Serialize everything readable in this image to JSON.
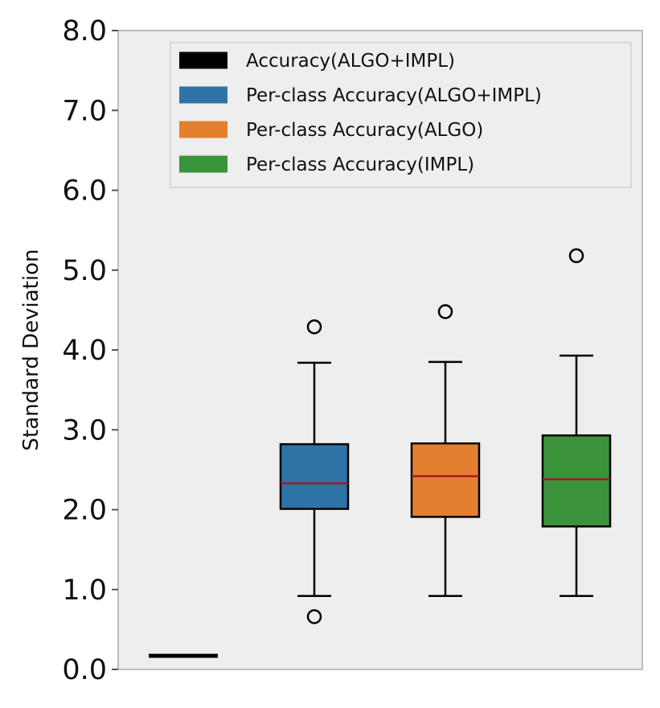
{
  "chart_data": {
    "type": "boxplot",
    "ylabel": "Standard Deviation",
    "ylim": [
      0,
      8
    ],
    "yticks": [
      "0.0",
      "1.0",
      "2.0",
      "3.0",
      "4.0",
      "5.0",
      "6.0",
      "7.0",
      "8.0"
    ],
    "grid": false,
    "legend_position": "top-right",
    "series": [
      {
        "name": "Accuracy(ALGO+IMPL)",
        "color": "#000000",
        "kind": "line",
        "value": 0.17
      },
      {
        "name": "Per-class Accuracy(ALGO+IMPL)",
        "color": "#2e74a6",
        "kind": "box",
        "whisker_low": 0.92,
        "q1": 2.01,
        "median": 2.33,
        "q3": 2.82,
        "whisker_high": 3.84,
        "outliers": [
          4.29,
          0.66
        ]
      },
      {
        "name": "Per-class Accuracy(ALGO)",
        "color": "#e38030",
        "kind": "box",
        "whisker_low": 0.92,
        "q1": 1.91,
        "median": 2.42,
        "q3": 2.83,
        "whisker_high": 3.85,
        "outliers": [
          4.48
        ]
      },
      {
        "name": "Per-class Accuracy(IMPL)",
        "color": "#3a933a",
        "kind": "box",
        "whisker_low": 0.92,
        "q1": 1.79,
        "median": 2.38,
        "q3": 2.93,
        "whisker_high": 3.93,
        "outliers": [
          5.18
        ]
      }
    ],
    "median_color": "#b0122a"
  }
}
